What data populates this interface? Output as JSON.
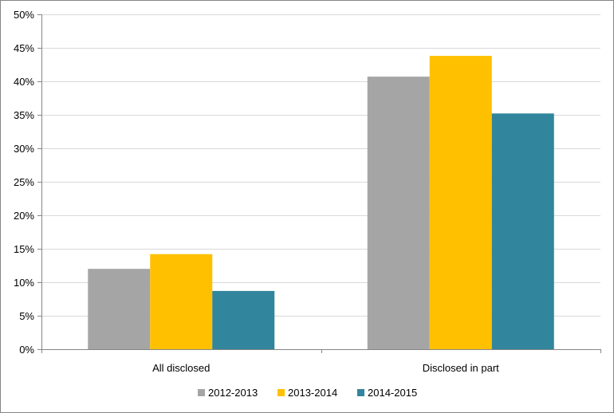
{
  "chart_data": {
    "type": "bar",
    "title": "",
    "xlabel": "",
    "ylabel": "",
    "categories": [
      "All disclosed",
      "Disclosed in part"
    ],
    "series": [
      {
        "name": "2012-2013",
        "color": "#a5a5a5",
        "values": [
          0.12,
          0.407
        ]
      },
      {
        "name": "2013-2014",
        "color": "#ffc000",
        "values": [
          0.142,
          0.438
        ]
      },
      {
        "name": "2014-2015",
        "color": "#31859c",
        "values": [
          0.087,
          0.352
        ]
      }
    ],
    "ylim": [
      0,
      0.5
    ],
    "yticks": [
      0,
      0.05,
      0.1,
      0.15,
      0.2,
      0.25,
      0.3,
      0.35,
      0.4,
      0.45,
      0.5
    ],
    "ytick_labels": [
      "0%",
      "5%",
      "10%",
      "15%",
      "20%",
      "25%",
      "30%",
      "35%",
      "40%",
      "45%",
      "50%"
    ],
    "grid": true,
    "legend_position": "bottom"
  }
}
